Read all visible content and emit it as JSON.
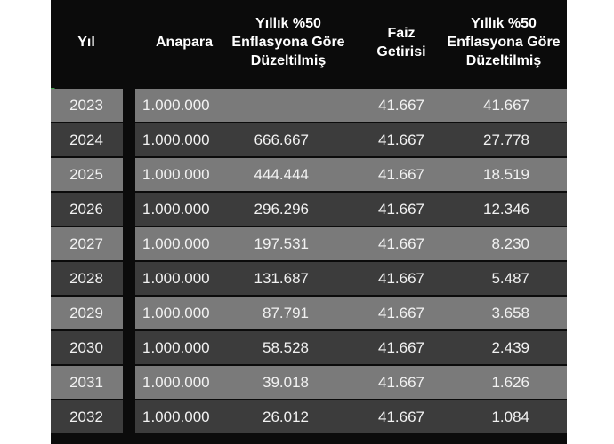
{
  "headers": {
    "year": "Yıl",
    "principal": "Anapara",
    "adjusted1": "Yıllık %50\nEnflasyona Göre\nDüzeltilmiş",
    "interest": "Faiz\nGetirisi",
    "adjusted2": "Yıllık %50\nEnflasyona Göre\nDüzeltilmiş"
  },
  "rows": [
    {
      "year": "2023",
      "principal": "1.000.000",
      "adjusted1": "",
      "interest": "41.667",
      "adjusted2": "41.667"
    },
    {
      "year": "2024",
      "principal": "1.000.000",
      "adjusted1": "666.667",
      "interest": "41.667",
      "adjusted2": "27.778"
    },
    {
      "year": "2025",
      "principal": "1.000.000",
      "adjusted1": "444.444",
      "interest": "41.667",
      "adjusted2": "18.519"
    },
    {
      "year": "2026",
      "principal": "1.000.000",
      "adjusted1": "296.296",
      "interest": "41.667",
      "adjusted2": "12.346"
    },
    {
      "year": "2027",
      "principal": "1.000.000",
      "adjusted1": "197.531",
      "interest": "41.667",
      "adjusted2": "8.230"
    },
    {
      "year": "2028",
      "principal": "1.000.000",
      "adjusted1": "131.687",
      "interest": "41.667",
      "adjusted2": "5.487"
    },
    {
      "year": "2029",
      "principal": "1.000.000",
      "adjusted1": "87.791",
      "interest": "41.667",
      "adjusted2": "3.658"
    },
    {
      "year": "2030",
      "principal": "1.000.000",
      "adjusted1": "58.528",
      "interest": "41.667",
      "adjusted2": "2.439"
    },
    {
      "year": "2031",
      "principal": "1.000.000",
      "adjusted1": "39.018",
      "interest": "41.667",
      "adjusted2": "1.626"
    },
    {
      "year": "2032",
      "principal": "1.000.000",
      "adjusted1": "26.012",
      "interest": "41.667",
      "adjusted2": "1.084"
    }
  ],
  "colors": {
    "background": "#0b0b0b",
    "row_light": "#7a7a7a",
    "row_dark": "#3c3c3c",
    "text": "#f2f2f2"
  }
}
